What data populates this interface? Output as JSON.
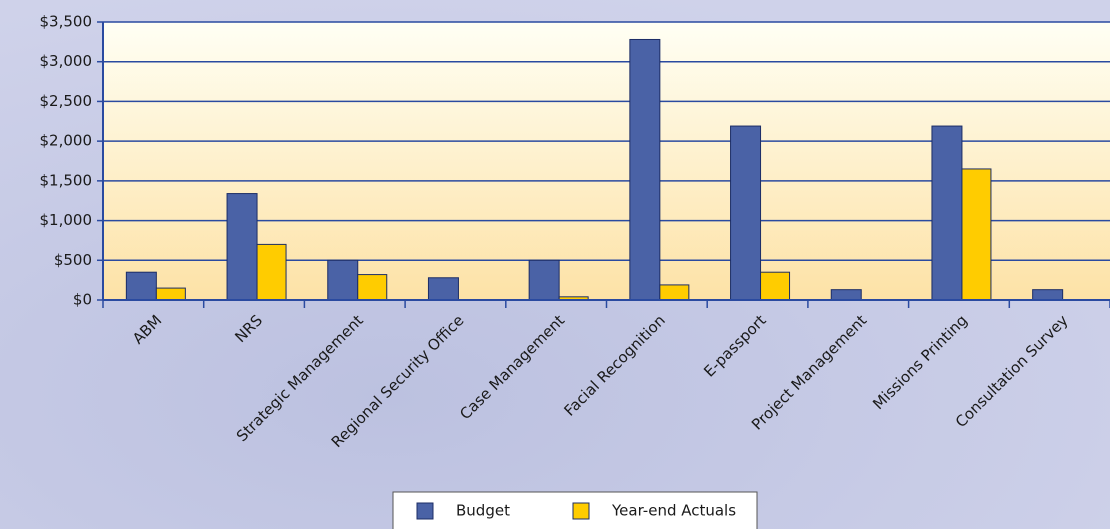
{
  "chart_data": {
    "type": "bar",
    "categories": [
      "ABM",
      "NRS",
      "Strategic Management",
      "Regional Security Office",
      "Case Management",
      "Facial Recognition",
      "E-passport",
      "Project Management",
      "Missions Printing",
      "Consultation Survey"
    ],
    "series": [
      {
        "name": "Budget",
        "color": "#4a62a6",
        "values": [
          350,
          1340,
          500,
          280,
          500,
          3280,
          2190,
          130,
          2190,
          130
        ]
      },
      {
        "name": "Year-end Actuals",
        "color": "#ffcc00",
        "values": [
          150,
          700,
          320,
          0,
          40,
          190,
          350,
          0,
          1650,
          0
        ]
      }
    ],
    "ylim": [
      0,
      3500
    ],
    "yticks": [
      {
        "value": 0,
        "label": "$0"
      },
      {
        "value": 500,
        "label": "$500"
      },
      {
        "value": 1000,
        "label": "$1,000"
      },
      {
        "value": 1500,
        "label": "$1,500"
      },
      {
        "value": 2000,
        "label": "$2,000"
      },
      {
        "value": 2500,
        "label": "$2,500"
      },
      {
        "value": 3000,
        "label": "$3,000"
      },
      {
        "value": 3500,
        "label": "$3,500"
      }
    ],
    "grid": true,
    "legend": "bottom"
  }
}
